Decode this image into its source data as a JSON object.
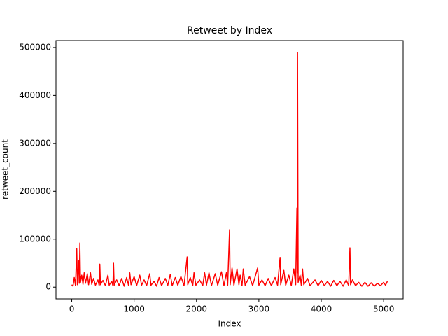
{
  "chart_data": {
    "type": "line",
    "title": "Retweet by Index",
    "x_label": "Index",
    "y_label": "retweet_count",
    "color": "#ff0000",
    "grid": false,
    "xlim": [
      -253,
      5313
    ],
    "ylim": [
      -24500,
      514500
    ],
    "xticks": [
      0,
      1000,
      2000,
      3000,
      4000,
      5000
    ],
    "yticks": [
      0,
      100000,
      200000,
      300000,
      400000,
      500000
    ],
    "x": [
      0,
      20,
      40,
      60,
      80,
      90,
      110,
      120,
      130,
      140,
      160,
      180,
      200,
      220,
      250,
      270,
      300,
      320,
      350,
      380,
      420,
      440,
      450,
      460,
      500,
      540,
      580,
      600,
      640,
      660,
      670,
      680,
      720,
      760,
      800,
      840,
      880,
      910,
      930,
      950,
      1000,
      1040,
      1090,
      1120,
      1160,
      1200,
      1250,
      1270,
      1320,
      1360,
      1400,
      1440,
      1500,
      1540,
      1580,
      1610,
      1660,
      1700,
      1750,
      1800,
      1850,
      1860,
      1900,
      1940,
      1960,
      1990,
      2050,
      2100,
      2130,
      2160,
      2200,
      2240,
      2300,
      2340,
      2400,
      2440,
      2480,
      2500,
      2530,
      2540,
      2570,
      2600,
      2650,
      2680,
      2700,
      2730,
      2750,
      2780,
      2850,
      2900,
      2980,
      3000,
      3050,
      3100,
      3150,
      3200,
      3260,
      3300,
      3340,
      3350,
      3400,
      3430,
      3480,
      3520,
      3560,
      3590,
      3610,
      3615,
      3620,
      3630,
      3660,
      3680,
      3700,
      3720,
      3780,
      3820,
      3900,
      3950,
      4000,
      4050,
      4100,
      4150,
      4200,
      4250,
      4300,
      4350,
      4400,
      4440,
      4460,
      4470,
      4500,
      4550,
      4600,
      4650,
      4700,
      4750,
      4800,
      4850,
      4900,
      4950,
      5000,
      5030,
      5060
    ],
    "values": [
      5000,
      2000,
      20000,
      3000,
      80000,
      5000,
      55000,
      8000,
      92000,
      10000,
      25000,
      6000,
      30000,
      8000,
      28000,
      5000,
      30000,
      6000,
      18000,
      4000,
      15000,
      3000,
      48000,
      5000,
      14000,
      3000,
      25000,
      4000,
      12000,
      3000,
      50000,
      4000,
      15000,
      3000,
      18000,
      2000,
      20000,
      4000,
      30000,
      5000,
      22000,
      3000,
      25000,
      4000,
      15000,
      3000,
      28000,
      4000,
      12000,
      2000,
      20000,
      3000,
      18000,
      4000,
      27000,
      3000,
      20000,
      4000,
      22000,
      3000,
      63000,
      5000,
      20000,
      3000,
      30000,
      4000,
      15000,
      3000,
      30000,
      4000,
      30000,
      3000,
      28000,
      4000,
      32000,
      3000,
      30000,
      4000,
      120000,
      5000,
      40000,
      4000,
      38000,
      5000,
      25000,
      3000,
      38000,
      4000,
      22000,
      3000,
      40000,
      4000,
      15000,
      3000,
      18000,
      3000,
      20000,
      4000,
      62000,
      5000,
      35000,
      4000,
      25000,
      3000,
      38000,
      5000,
      165000,
      30000,
      490000,
      10000,
      25000,
      4000,
      38000,
      5000,
      18000,
      3000,
      15000,
      3000,
      14000,
      3000,
      12000,
      2000,
      14000,
      3000,
      12000,
      2000,
      15000,
      3000,
      82000,
      5000,
      15000,
      3000,
      10000,
      2000,
      10000,
      2000,
      9000,
      2000,
      8000,
      3000,
      10000,
      4000,
      12000
    ]
  }
}
